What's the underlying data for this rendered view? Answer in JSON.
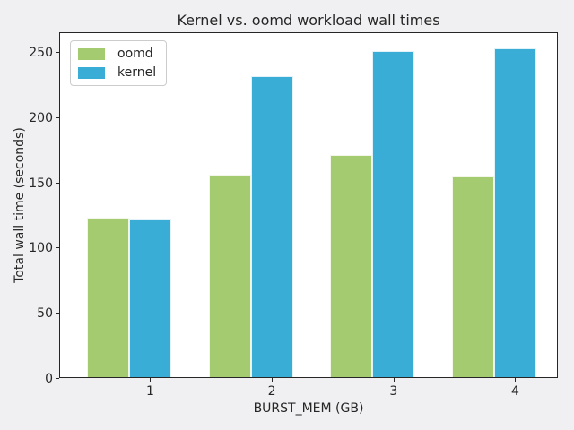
{
  "figure": {
    "background_color": "#f0f0f2",
    "plot_background_color": "#ffffff",
    "spine_color": "#262626",
    "text_color": "#262626"
  },
  "chart_data": {
    "type": "bar",
    "title": "Kernel vs. oomd workload wall times",
    "xlabel": "BURST_MEM (GB)",
    "ylabel": "Total wall time (seconds)",
    "categories": [
      "1",
      "2",
      "3",
      "4"
    ],
    "series": [
      {
        "name": "oomd",
        "color": "#a5cb70",
        "values": [
          122,
          155,
          170,
          154
        ]
      },
      {
        "name": "kernel",
        "color": "#39add5",
        "values": [
          121,
          231,
          250,
          252
        ]
      }
    ],
    "ylim": [
      0,
      265
    ],
    "yticks": [
      0,
      50,
      100,
      150,
      200,
      250
    ],
    "grid": false,
    "legend_position": "upper left"
  }
}
